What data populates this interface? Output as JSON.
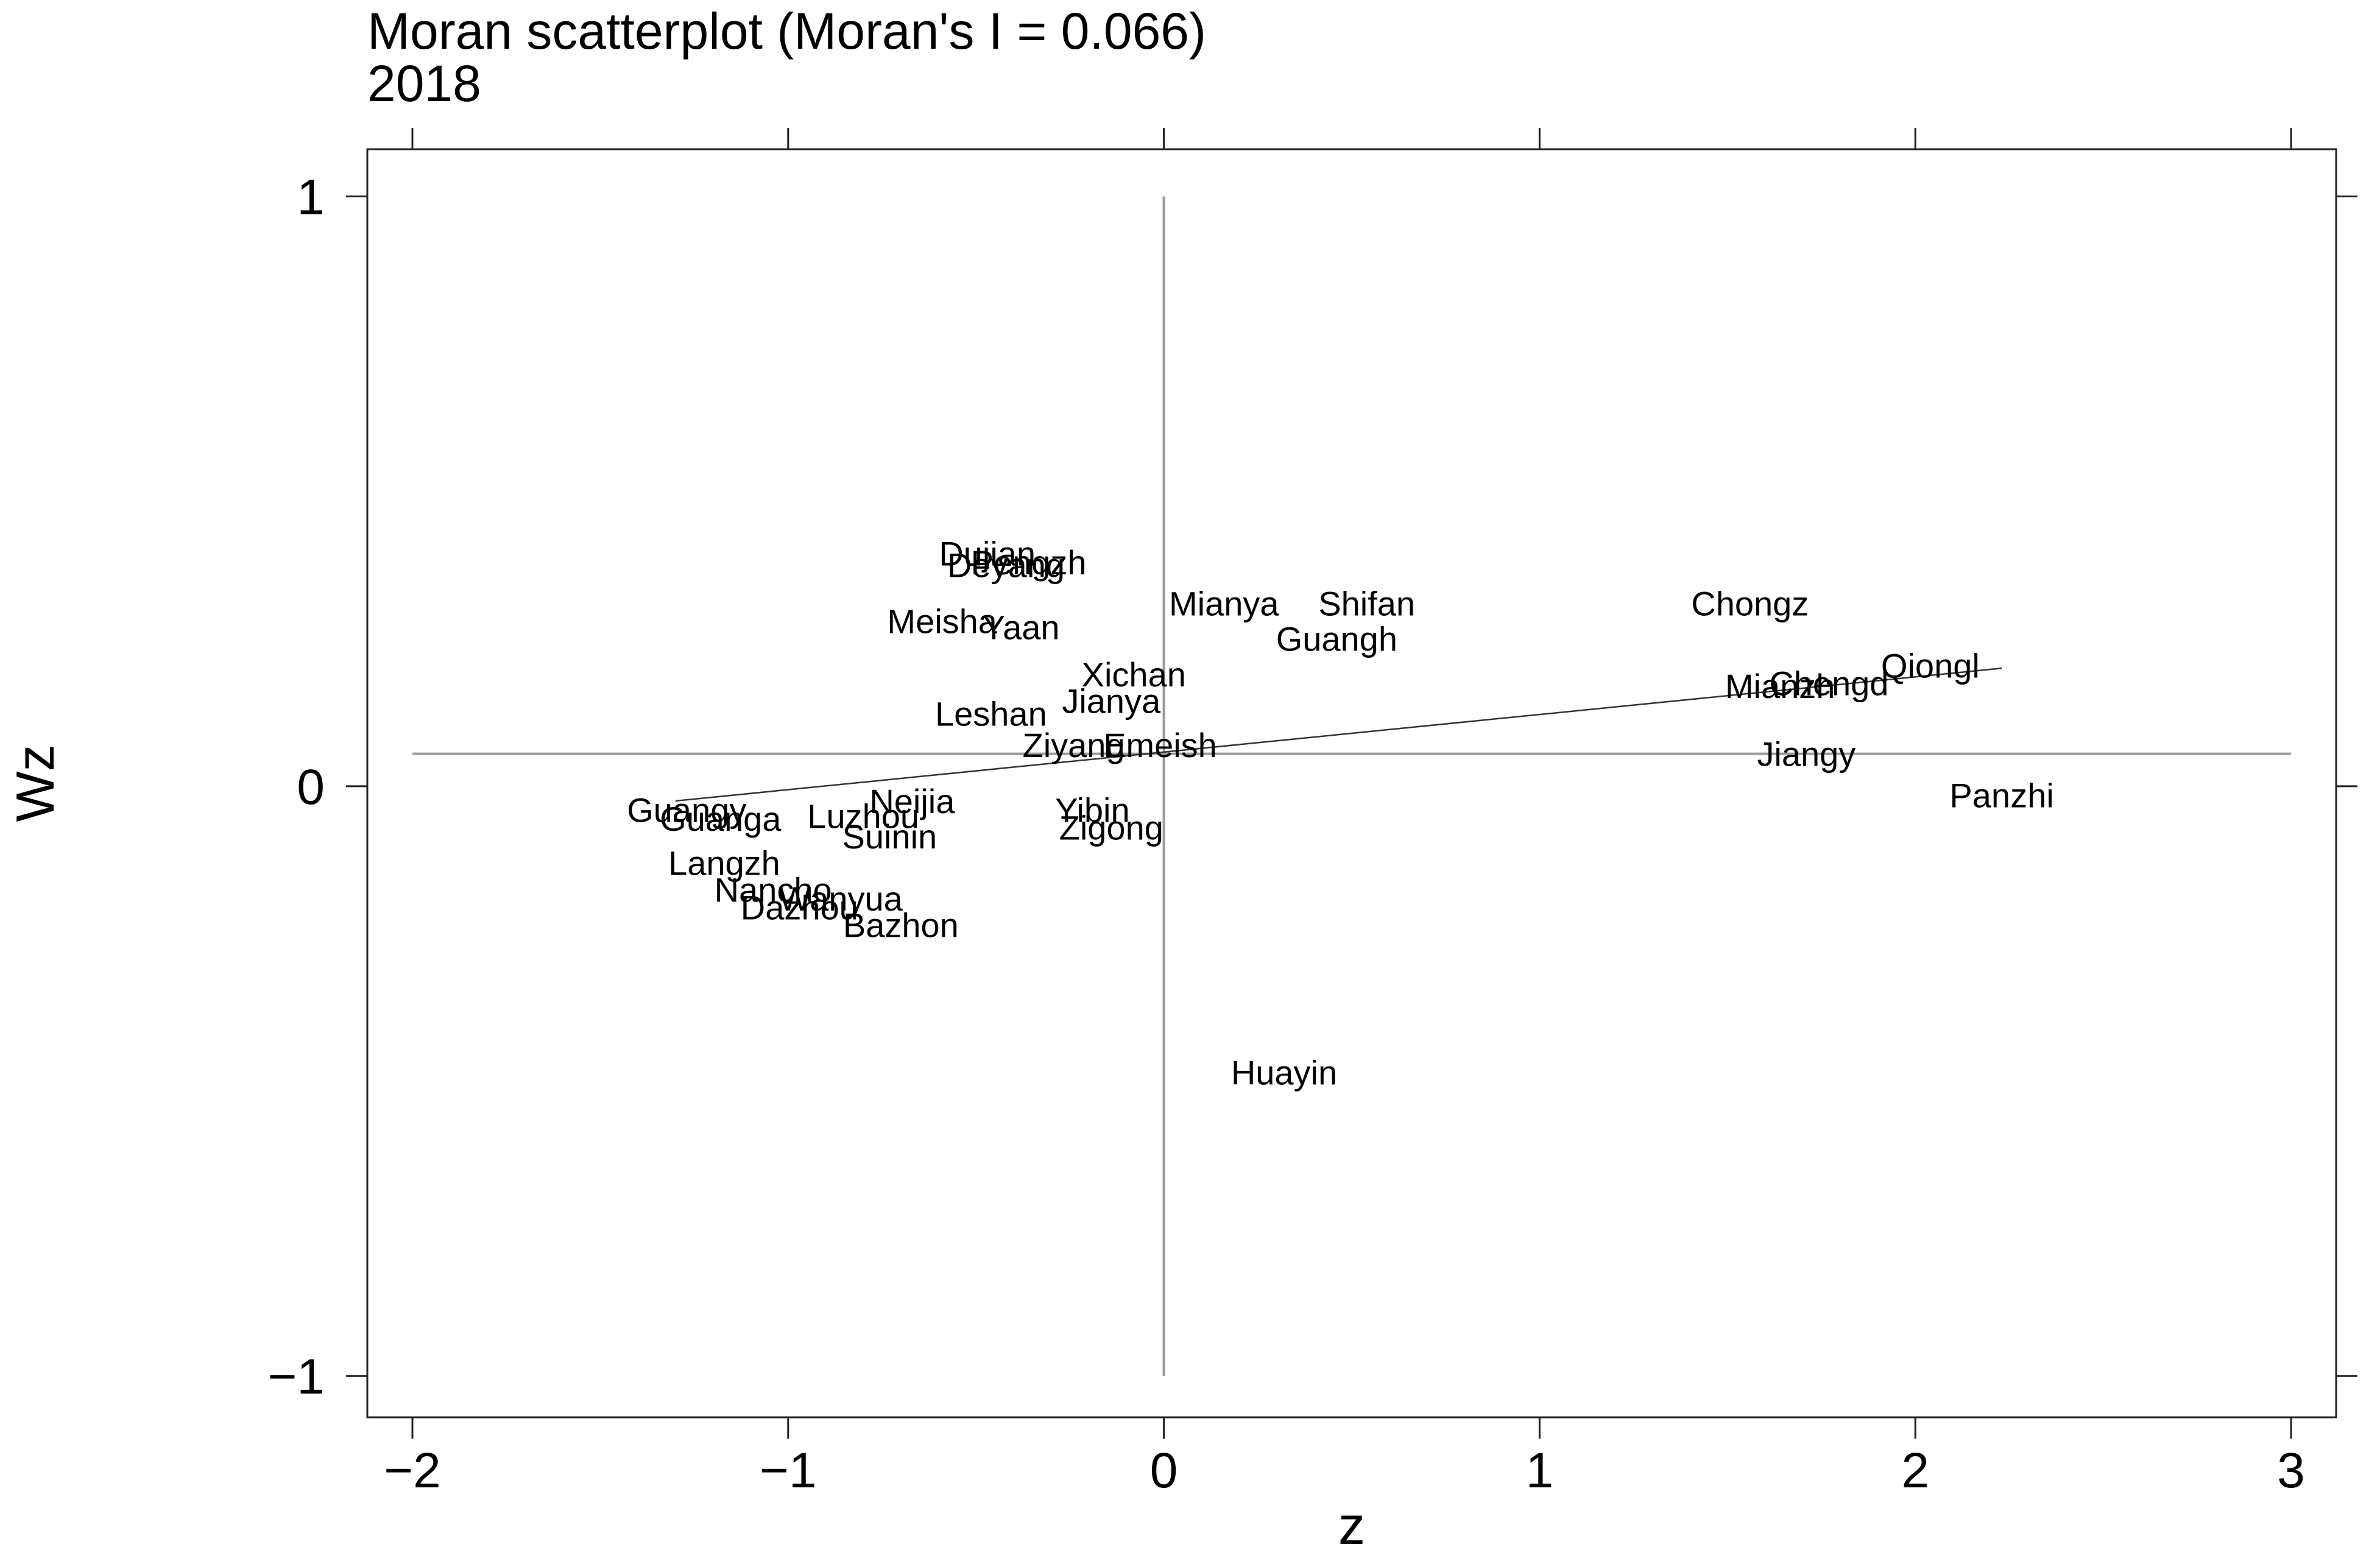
{
  "chart_data": {
    "type": "scatter",
    "title": "Moran scatterplot (Moran's I = 0.066)",
    "subtitle": "2018",
    "xlabel": "z",
    "ylabel": "Wz",
    "xlim": [
      -2.12,
      3.12
    ],
    "ylim": [
      -1.07,
      1.08
    ],
    "xticks": [
      {
        "value": -2,
        "label": "−2"
      },
      {
        "value": -1,
        "label": "−1"
      },
      {
        "value": 0,
        "label": "0"
      },
      {
        "value": 1,
        "label": "1"
      },
      {
        "value": 2,
        "label": "2"
      },
      {
        "value": 3,
        "label": "3"
      }
    ],
    "yticks": [
      {
        "value": -1,
        "label": "−1"
      },
      {
        "value": 0,
        "label": "0"
      },
      {
        "value": 1,
        "label": "1"
      }
    ],
    "reference_lines": {
      "x": 0,
      "y": 0.055,
      "x_range": [
        -2,
        3
      ],
      "y_range": [
        -1,
        1
      ]
    },
    "fit_line": {
      "x": [
        -1.3,
        2.23
      ],
      "y": [
        -0.025,
        0.2
      ]
    },
    "points": [
      {
        "label": "Dujian",
        "x": -0.47,
        "y": 0.395
      },
      {
        "label": "Deyang",
        "x": -0.42,
        "y": 0.375
      },
      {
        "label": "Leshan",
        "x": -0.46,
        "y": 0.123
      },
      {
        "label": "Pengzh",
        "x": -0.36,
        "y": 0.38
      },
      {
        "label": "Meisha",
        "x": -0.59,
        "y": 0.28
      },
      {
        "label": "Yaan",
        "x": -0.38,
        "y": 0.27
      },
      {
        "label": "Mianya",
        "x": 0.16,
        "y": 0.31
      },
      {
        "label": "Shifan",
        "x": 0.54,
        "y": 0.31
      },
      {
        "label": "Guangh",
        "x": 0.46,
        "y": 0.25
      },
      {
        "label": "Xichan",
        "x": -0.08,
        "y": 0.19
      },
      {
        "label": "Jianya",
        "x": -0.14,
        "y": 0.145
      },
      {
        "label": "Ziyang",
        "x": -0.24,
        "y": 0.07
      },
      {
        "label": "Emeish",
        "x": -0.01,
        "y": 0.07
      },
      {
        "label": "Chongz",
        "x": 1.56,
        "y": 0.31
      },
      {
        "label": "Qiongl",
        "x": 2.04,
        "y": 0.205
      },
      {
        "label": "Mianzh",
        "x": 1.64,
        "y": 0.17
      },
      {
        "label": "Chengd",
        "x": 1.77,
        "y": 0.175
      },
      {
        "label": "Jiangy",
        "x": 1.71,
        "y": 0.055
      },
      {
        "label": "Panzhi",
        "x": 2.23,
        "y": -0.015
      },
      {
        "label": "Guangy",
        "x": -1.27,
        "y": -0.04
      },
      {
        "label": "Guanga",
        "x": -1.18,
        "y": -0.055
      },
      {
        "label": "Luzhou",
        "x": -0.8,
        "y": -0.05
      },
      {
        "label": "Neijia",
        "x": -0.67,
        "y": -0.025
      },
      {
        "label": "Suinin",
        "x": -0.73,
        "y": -0.085
      },
      {
        "label": "Yibin",
        "x": -0.19,
        "y": -0.04
      },
      {
        "label": "Zigong",
        "x": -0.14,
        "y": -0.07
      },
      {
        "label": "Langzh",
        "x": -1.17,
        "y": -0.13
      },
      {
        "label": "Nancho",
        "x": -1.04,
        "y": -0.175
      },
      {
        "label": "Wanyua",
        "x": -0.86,
        "y": -0.19
      },
      {
        "label": "Dazhou",
        "x": -0.97,
        "y": -0.205
      },
      {
        "label": "Bazhon",
        "x": -0.7,
        "y": -0.235
      },
      {
        "label": "Huayin",
        "x": 0.32,
        "y": -0.485
      }
    ]
  }
}
